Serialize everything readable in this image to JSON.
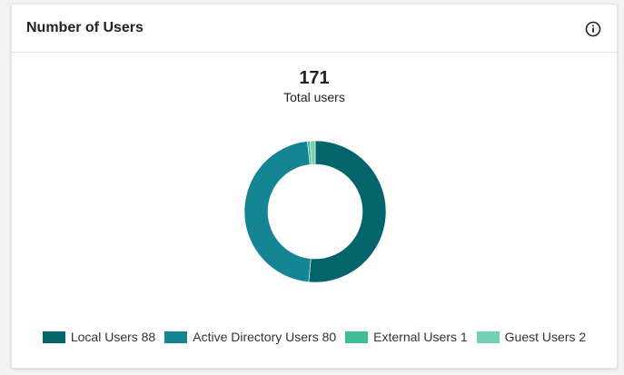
{
  "card": {
    "title": "Number of Users",
    "info_icon": "info-circle-icon"
  },
  "summary": {
    "total": "171",
    "label": "Total users"
  },
  "chart_data": {
    "type": "pie",
    "donut": true,
    "title": "",
    "series": [
      {
        "name": "Local Users",
        "value": 88,
        "color": "#04646c",
        "legend": "Local Users 88"
      },
      {
        "name": "Active Directory Users",
        "value": 80,
        "color": "#158593",
        "legend": "Active Directory Users 80"
      },
      {
        "name": "External Users",
        "value": 1,
        "color": "#3cbf94",
        "legend": "External Users 1"
      },
      {
        "name": "Guest Users",
        "value": 2,
        "color": "#74cfb3",
        "legend": "Guest Users 2"
      }
    ],
    "legend_position": "bottom"
  }
}
